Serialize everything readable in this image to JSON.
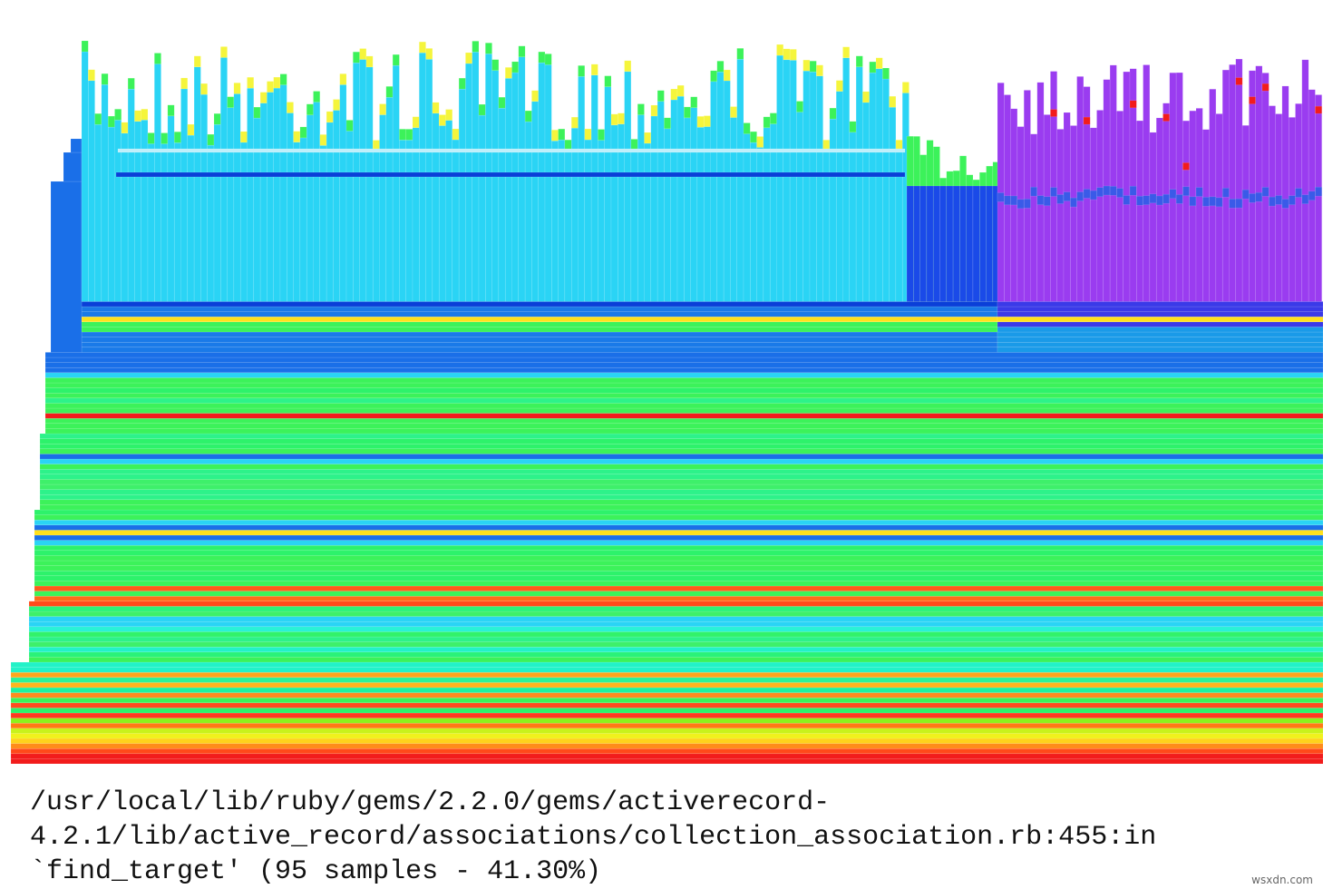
{
  "status": {
    "lines": [
      "/usr/local/lib/ruby/gems/2.2.0/gems/activerecord-",
      "4.2.1/lib/active_record/associations/collection_association.rb:455:in",
      "`find_target' (95 samples - 41.30%)"
    ]
  },
  "watermark": "wsxdn.com"
}
